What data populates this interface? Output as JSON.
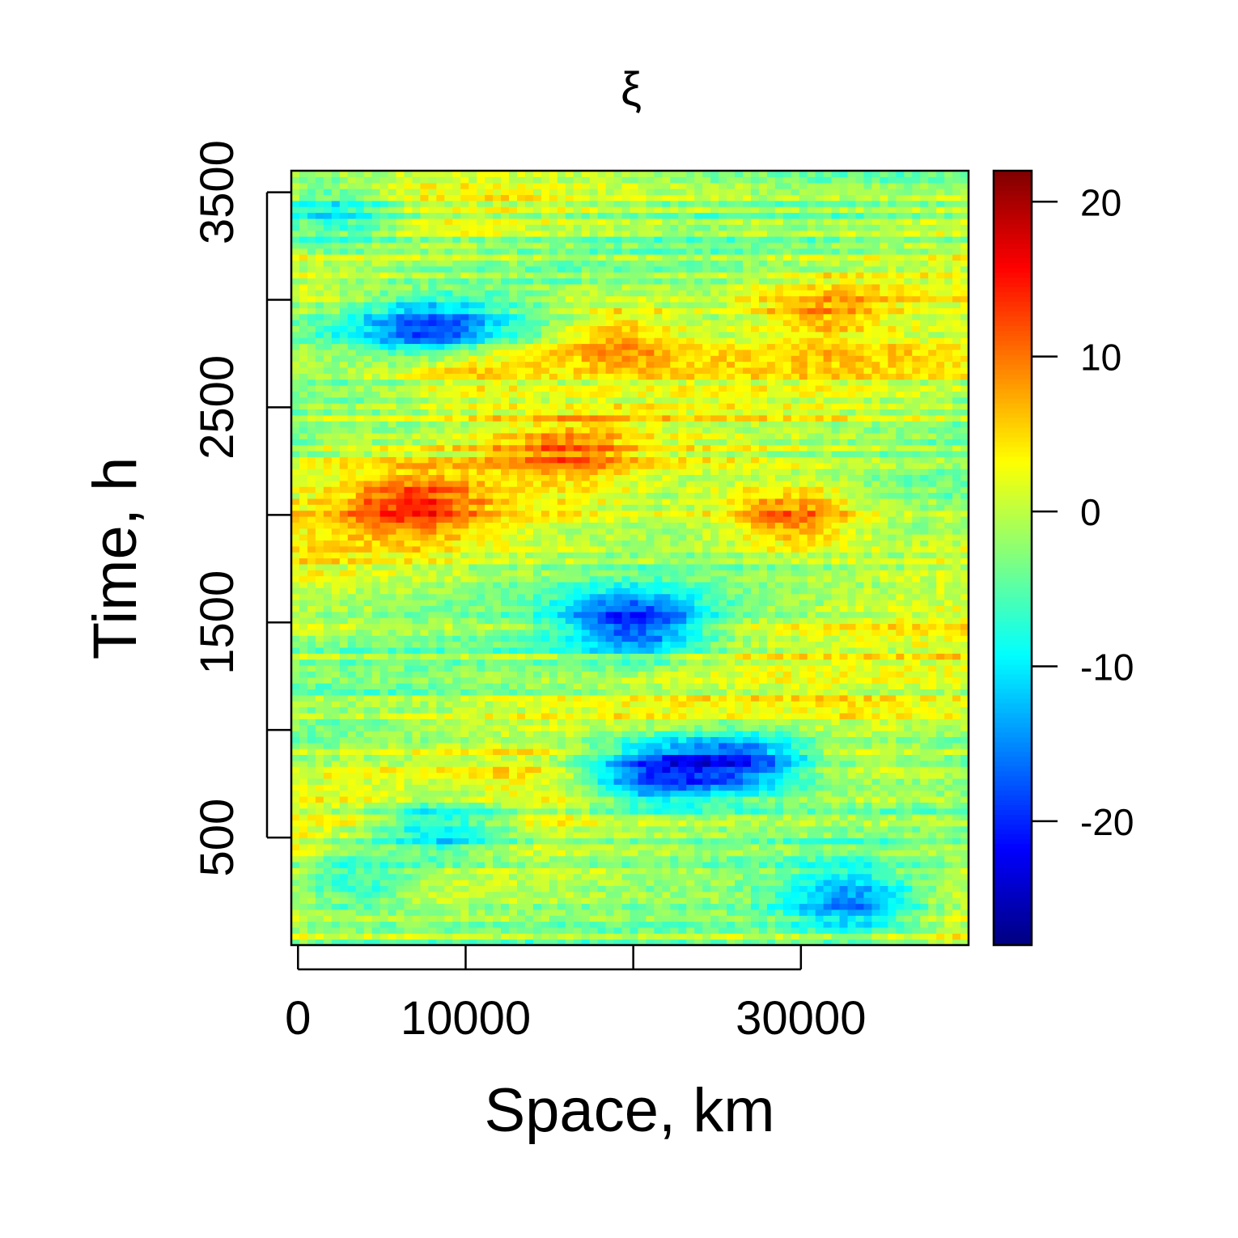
{
  "chart_data": {
    "type": "heatmap",
    "title": "ξ",
    "xlabel": "Space, km",
    "ylabel": "Time, h",
    "xlim": [
      -400,
      40000
    ],
    "ylim": [
      0,
      3600
    ],
    "x_ticks": [
      0,
      10000,
      20000,
      30000
    ],
    "x_tick_labels": [
      "0",
      "10000",
      "",
      "30000"
    ],
    "y_ticks": [
      500,
      1000,
      1500,
      2000,
      2500,
      3000,
      3500
    ],
    "y_tick_labels": [
      "500",
      "",
      "1500",
      "",
      "2500",
      "",
      "3500"
    ],
    "colorbar": {
      "colormap": "jet",
      "range": [
        -28,
        22
      ],
      "ticks": [
        20,
        10,
        0,
        -10,
        -20
      ],
      "tick_labels": [
        "20",
        "10",
        "0",
        "-10",
        "-20"
      ]
    },
    "grid": false,
    "features": [
      {
        "x": 8000,
        "y": 2850,
        "value": -16
      },
      {
        "x": 9500,
        "y": 2700,
        "value": 8
      },
      {
        "x": 19000,
        "y": 2850,
        "value": 9
      },
      {
        "x": 7000,
        "y": 2050,
        "value": 11
      },
      {
        "x": 29500,
        "y": 2000,
        "value": 12
      },
      {
        "x": 16000,
        "y": 2300,
        "value": 8
      },
      {
        "x": 20000,
        "y": 1500,
        "value": -18
      },
      {
        "x": 21000,
        "y": 800,
        "value": -21
      },
      {
        "x": 26500,
        "y": 850,
        "value": -19
      },
      {
        "x": 8500,
        "y": 550,
        "value": -13
      },
      {
        "x": 2000,
        "y": 3400,
        "value": -12
      },
      {
        "x": 31000,
        "y": 2950,
        "value": 7
      },
      {
        "x": 33000,
        "y": 200,
        "value": -15
      },
      {
        "x": 3000,
        "y": 300,
        "value": -10
      }
    ]
  }
}
